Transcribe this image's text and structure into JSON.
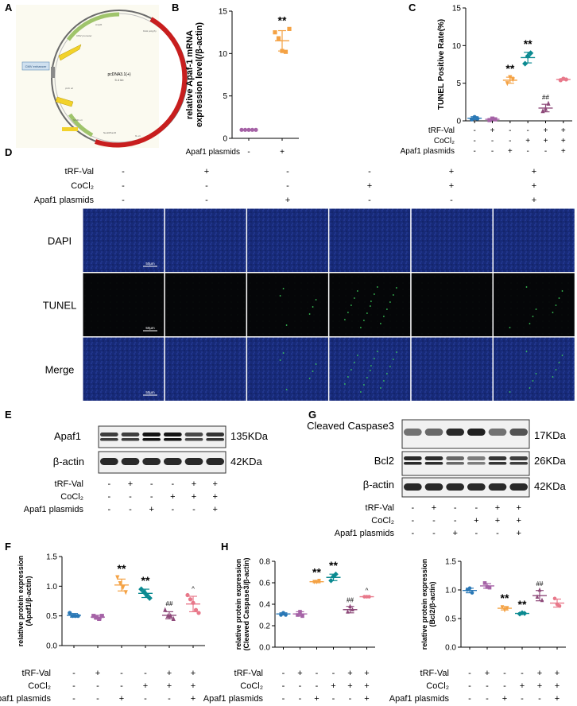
{
  "panels": {
    "A": "A",
    "B": "B",
    "C": "C",
    "D": "D",
    "E": "E",
    "F": "F",
    "G": "G",
    "H": "H"
  },
  "colors": {
    "control": "#2a78b6",
    "trf": "#a562a6",
    "apaf": "#f4a244",
    "cocl2": "#0b8a91",
    "trf_cocl2": "#8e4a7a",
    "all": "#e8788a",
    "plasmid_red": "#c81e1e",
    "plasmid_yellow": "#f2d22a",
    "plasmid_green": "#9fc46b",
    "plasmid_gray": "#8a8a8a",
    "fluor_blue": "#15246b",
    "fluor_green": "#3ccc5a"
  },
  "plasmid": {
    "name": "pcDNA3.1(+)",
    "size": "5.4 kb",
    "left_tag": "CMV enhancer",
    "feature_labels": [
      "AmpR",
      "CMV promoter",
      "pUC ori",
      "SV40 ori",
      "NeoR/KanR",
      "bGH poly(A)",
      "f1 ori"
    ]
  },
  "conditions": {
    "labels": [
      "tRF-Val",
      "CoCl₂",
      "Apaf1 plasmids"
    ],
    "six_groups": [
      [
        "-",
        "+",
        "-",
        "-",
        "+",
        "+"
      ],
      [
        "-",
        "-",
        "-",
        "+",
        "+",
        "+"
      ],
      [
        "-",
        "-",
        "+",
        "-",
        "-",
        "+"
      ]
    ],
    "two_groups": [
      "-",
      "+"
    ]
  },
  "panel_d": {
    "rows": [
      "DAPI",
      "TUNEL",
      "Merge"
    ],
    "scale_bar": "50μm"
  },
  "blots": {
    "E": {
      "bands": [
        {
          "name": "Apaf1",
          "kda": "135KDa"
        },
        {
          "name": "β-actin",
          "kda": "42KDa"
        }
      ]
    },
    "G": {
      "bands": [
        {
          "name": "Cleaved Caspase3",
          "kda": "17KDa"
        },
        {
          "name": "Bcl2",
          "kda": "26KDa"
        },
        {
          "name": "β-actin",
          "kda": "42KDa"
        }
      ]
    }
  },
  "chart_data": [
    {
      "id": "B",
      "type": "scatter",
      "ylabel": "relative Apaf-1 mRNA expression level(/β-actin)",
      "xlabel": "Apaf1 plasmids",
      "categories": [
        "-",
        "+"
      ],
      "ylim": [
        0,
        15
      ],
      "yticks": [
        0,
        5,
        10,
        15
      ],
      "series": [
        {
          "values": [
            1.0,
            1.0,
            1.0,
            1.0,
            1.0
          ],
          "mean": 1.0,
          "sd": 0.0
        },
        {
          "values": [
            12.5,
            11.8,
            10.3,
            10.2,
            12.9
          ],
          "mean": 11.5,
          "sd": 1.2
        }
      ],
      "annotations": [
        {
          "group": 1,
          "text": "**"
        }
      ]
    },
    {
      "id": "C",
      "type": "scatter",
      "ylabel": "TUNEL Positive Rate(%)",
      "ylim": [
        0,
        15
      ],
      "yticks": [
        0,
        5,
        10,
        15
      ],
      "series": [
        {
          "values": [
            0.2,
            0.5,
            0.3
          ],
          "mean": 0.35,
          "sd": 0.2
        },
        {
          "values": [
            0.1,
            0.3,
            0.2
          ],
          "mean": 0.2,
          "sd": 0.1
        },
        {
          "values": [
            5.0,
            5.8,
            5.5
          ],
          "mean": 5.4,
          "sd": 0.4
        },
        {
          "values": [
            7.6,
            8.6,
            9.0
          ],
          "mean": 8.4,
          "sd": 0.7
        },
        {
          "values": [
            1.3,
            1.6,
            2.3
          ],
          "mean": 1.7,
          "sd": 0.5
        },
        {
          "values": [
            5.4,
            5.6,
            5.5
          ],
          "mean": 5.5,
          "sd": 0.1
        }
      ],
      "annotations": [
        {
          "group": 2,
          "text": "**"
        },
        {
          "group": 3,
          "text": "**"
        },
        {
          "group": 4,
          "text": "##"
        }
      ]
    },
    {
      "id": "F",
      "type": "scatter",
      "ylabel": "relative protein expression (Apaf1/β-actin)",
      "ylim": [
        0,
        1.5
      ],
      "yticks": [
        0.0,
        0.5,
        1.0,
        1.5
      ],
      "series": [
        {
          "values": [
            0.55,
            0.5,
            0.5,
            0.5
          ],
          "mean": 0.51,
          "sd": 0.03
        },
        {
          "values": [
            0.5,
            0.47,
            0.45,
            0.5
          ],
          "mean": 0.48,
          "sd": 0.03
        },
        {
          "values": [
            1.15,
            1.05,
            0.98,
            0.9
          ],
          "mean": 1.02,
          "sd": 0.1
        },
        {
          "values": [
            0.95,
            0.9,
            0.85,
            0.8
          ],
          "mean": 0.88,
          "sd": 0.07
        },
        {
          "values": [
            0.6,
            0.5,
            0.5,
            0.45
          ],
          "mean": 0.51,
          "sd": 0.06
        },
        {
          "values": [
            0.85,
            0.78,
            0.72,
            0.6,
            0.55
          ],
          "mean": 0.7,
          "sd": 0.13
        }
      ],
      "annotations": [
        {
          "group": 2,
          "text": "**"
        },
        {
          "group": 3,
          "text": "**"
        },
        {
          "group": 4,
          "text": "##"
        },
        {
          "group": 5,
          "text": "^"
        }
      ]
    },
    {
      "id": "H1",
      "type": "scatter",
      "ylabel": "relative protein expression (Cleaved Caspase3/β-actin)",
      "ylim": [
        0,
        0.8
      ],
      "yticks": [
        0.0,
        0.2,
        0.4,
        0.6,
        0.8
      ],
      "series": [
        {
          "values": [
            0.3,
            0.32,
            0.3
          ],
          "mean": 0.31,
          "sd": 0.01
        },
        {
          "values": [
            0.3,
            0.33,
            0.29
          ],
          "mean": 0.31,
          "sd": 0.02
        },
        {
          "values": [
            0.61,
            0.61,
            0.62
          ],
          "mean": 0.61,
          "sd": 0.01
        },
        {
          "values": [
            0.62,
            0.66,
            0.68
          ],
          "mean": 0.65,
          "sd": 0.03
        },
        {
          "values": [
            0.33,
            0.38,
            0.35
          ],
          "mean": 0.35,
          "sd": 0.03
        },
        {
          "values": [
            0.47,
            0.47,
            0.47
          ],
          "mean": 0.47,
          "sd": 0.0
        }
      ],
      "annotations": [
        {
          "group": 2,
          "text": "**"
        },
        {
          "group": 3,
          "text": "**"
        },
        {
          "group": 4,
          "text": "##"
        },
        {
          "group": 5,
          "text": "^"
        }
      ]
    },
    {
      "id": "H2",
      "type": "scatter",
      "ylabel": "relative protein expression (Bcl2/β-actin)",
      "ylim": [
        0,
        1.5
      ],
      "yticks": [
        0.0,
        0.5,
        1.0,
        1.5
      ],
      "series": [
        {
          "values": [
            1.0,
            1.03,
            0.95
          ],
          "mean": 0.99,
          "sd": 0.04
        },
        {
          "values": [
            1.12,
            1.05,
            1.04
          ],
          "mean": 1.07,
          "sd": 0.04
        },
        {
          "values": [
            0.7,
            0.65,
            0.68
          ],
          "mean": 0.68,
          "sd": 0.03
        },
        {
          "values": [
            0.58,
            0.6,
            0.59
          ],
          "mean": 0.59,
          "sd": 0.01
        },
        {
          "values": [
            0.88,
            1.0,
            0.82
          ],
          "mean": 0.9,
          "sd": 0.09
        },
        {
          "values": [
            0.85,
            0.75,
            0.72
          ],
          "mean": 0.77,
          "sd": 0.07
        }
      ],
      "annotations": [
        {
          "group": 2,
          "text": "**"
        },
        {
          "group": 3,
          "text": "**"
        },
        {
          "group": 4,
          "text": "##"
        }
      ]
    }
  ]
}
